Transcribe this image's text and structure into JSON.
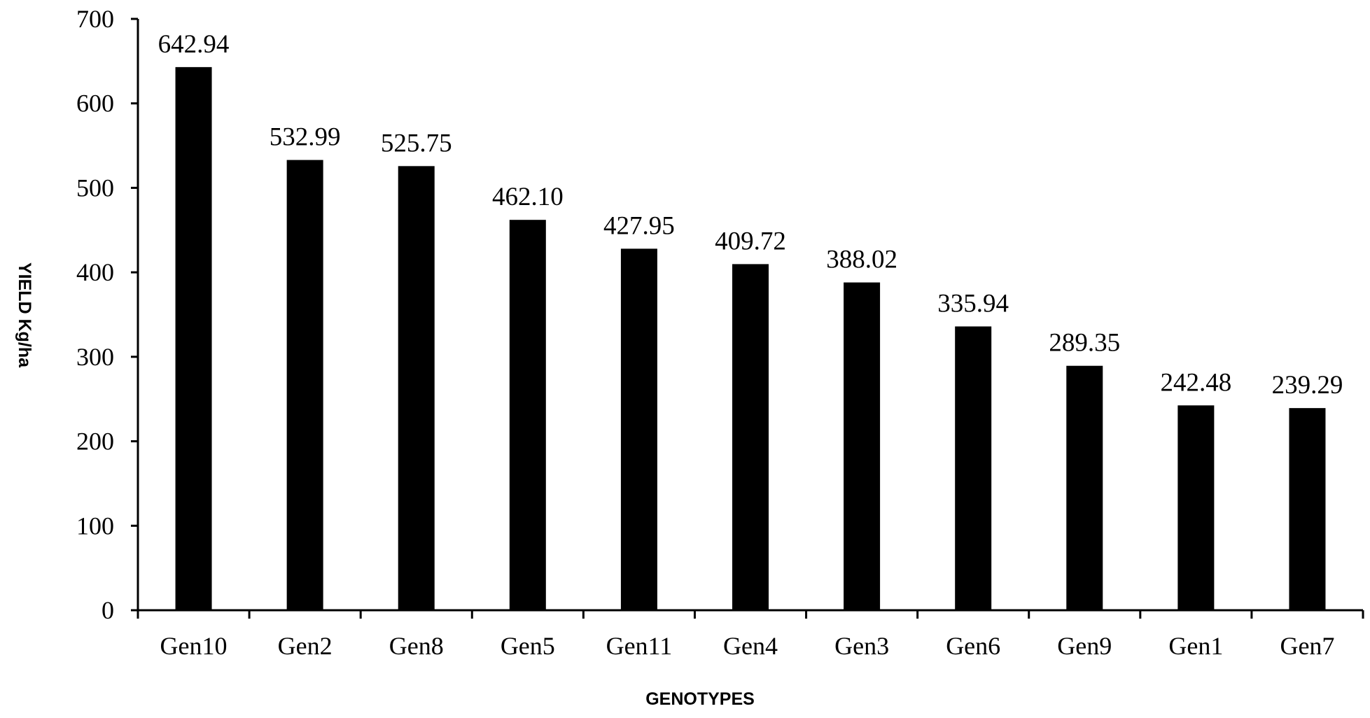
{
  "chart_data": {
    "type": "bar",
    "title": "",
    "xlabel": "GENOTYPES",
    "ylabel": "YIELD Kg/ha",
    "categories": [
      "Gen10",
      "Gen2",
      "Gen8",
      "Gen5",
      "Gen11",
      "Gen4",
      "Gen3",
      "Gen6",
      "Gen9",
      "Gen1",
      "Gen7"
    ],
    "values": [
      642.94,
      532.99,
      525.75,
      462.1,
      427.95,
      409.72,
      388.02,
      335.94,
      289.35,
      242.48,
      239.29
    ],
    "value_labels": [
      "642.94",
      "532.99",
      "525.75",
      "462.10",
      "427.95",
      "409.72",
      "388.02",
      "335.94",
      "289.35",
      "242.48",
      "239.29"
    ],
    "ylim": [
      0,
      700
    ],
    "yticks": [
      0,
      100,
      200,
      300,
      400,
      500,
      600,
      700
    ],
    "grid": false,
    "legend": "none",
    "bar_color": "#000000"
  }
}
